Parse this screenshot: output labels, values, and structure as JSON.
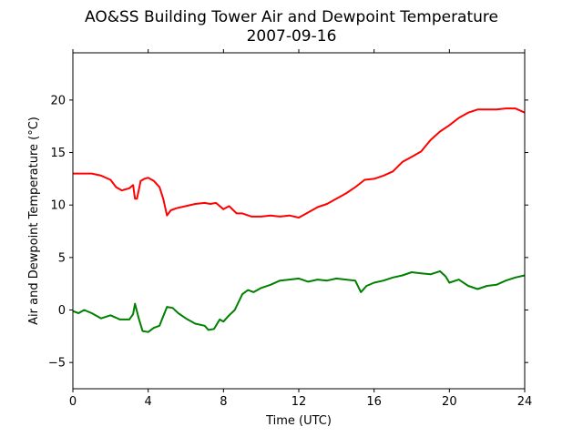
{
  "chart_data": {
    "type": "line",
    "title": "AO&SS Building Tower Air and Dewpoint Temperature",
    "subtitle": "2007-09-16",
    "xlabel": "Time (UTC)",
    "ylabel": "Air and Dewpoint Temperature (°C)",
    "xlim": [
      0,
      24
    ],
    "ylim": [
      -7.5,
      24.5
    ],
    "xticks": [
      0,
      4,
      8,
      12,
      16,
      20,
      24
    ],
    "yticks": [
      -5,
      0,
      5,
      10,
      15,
      20
    ],
    "grid": false,
    "series": [
      {
        "color": "#ff0000",
        "x": [
          0,
          0.5,
          1.0,
          1.5,
          2.0,
          2.3,
          2.6,
          3.0,
          3.2,
          3.3,
          3.4,
          3.5,
          3.6,
          3.8,
          4.0,
          4.3,
          4.6,
          4.8,
          5.0,
          5.2,
          5.5,
          6.0,
          6.5,
          7.0,
          7.3,
          7.6,
          8.0,
          8.3,
          8.7,
          9.0,
          9.5,
          10.0,
          10.5,
          11.0,
          11.5,
          12.0,
          12.3,
          12.7,
          13.0,
          13.5,
          14.0,
          14.5,
          15.0,
          15.5,
          16.0,
          16.5,
          17.0,
          17.5,
          18.0,
          18.5,
          19.0,
          19.5,
          20.0,
          20.5,
          21.0,
          21.5,
          22.0,
          22.5,
          23.0,
          23.5,
          24.0
        ],
        "values": [
          13.0,
          13.0,
          13.0,
          12.8,
          12.4,
          11.7,
          11.4,
          11.6,
          11.9,
          10.6,
          10.6,
          11.4,
          12.3,
          12.5,
          12.6,
          12.3,
          11.7,
          10.6,
          9.0,
          9.5,
          9.7,
          9.9,
          10.1,
          10.2,
          10.1,
          10.2,
          9.6,
          9.9,
          9.2,
          9.2,
          8.9,
          8.9,
          9.0,
          8.9,
          9.0,
          8.8,
          9.1,
          9.5,
          9.8,
          10.1,
          10.6,
          11.1,
          11.7,
          12.4,
          12.5,
          12.8,
          13.2,
          14.1,
          14.6,
          15.1,
          16.2,
          17.0,
          17.6,
          18.3,
          18.8,
          19.1,
          19.1,
          19.1,
          19.2,
          19.2,
          18.8
        ]
      },
      {
        "color": "#008000",
        "x": [
          0,
          0.3,
          0.6,
          1.0,
          1.5,
          2.0,
          2.5,
          3.0,
          3.2,
          3.3,
          3.5,
          3.7,
          4.0,
          4.3,
          4.6,
          5.0,
          5.3,
          5.6,
          6.0,
          6.5,
          7.0,
          7.2,
          7.5,
          7.8,
          8.0,
          8.3,
          8.6,
          9.0,
          9.3,
          9.6,
          10.0,
          10.5,
          11.0,
          11.5,
          12.0,
          12.5,
          13.0,
          13.5,
          14.0,
          14.5,
          15.0,
          15.3,
          15.6,
          16.0,
          16.5,
          17.0,
          17.5,
          18.0,
          18.5,
          19.0,
          19.5,
          19.8,
          20.0,
          20.5,
          21.0,
          21.5,
          22.0,
          22.5,
          23.0,
          23.5,
          24.0
        ],
        "values": [
          -0.1,
          -0.3,
          0.0,
          -0.3,
          -0.8,
          -0.5,
          -0.9,
          -0.9,
          -0.4,
          0.6,
          -0.8,
          -2.0,
          -2.1,
          -1.7,
          -1.5,
          0.3,
          0.2,
          -0.3,
          -0.8,
          -1.3,
          -1.5,
          -1.9,
          -1.8,
          -0.9,
          -1.1,
          -0.5,
          0.0,
          1.5,
          1.9,
          1.7,
          2.1,
          2.4,
          2.8,
          2.9,
          3.0,
          2.7,
          2.9,
          2.8,
          3.0,
          2.9,
          2.8,
          1.7,
          2.3,
          2.6,
          2.8,
          3.1,
          3.3,
          3.6,
          3.5,
          3.4,
          3.7,
          3.2,
          2.6,
          2.9,
          2.3,
          2.0,
          2.3,
          2.4,
          2.8,
          3.1,
          3.3
        ]
      }
    ]
  }
}
